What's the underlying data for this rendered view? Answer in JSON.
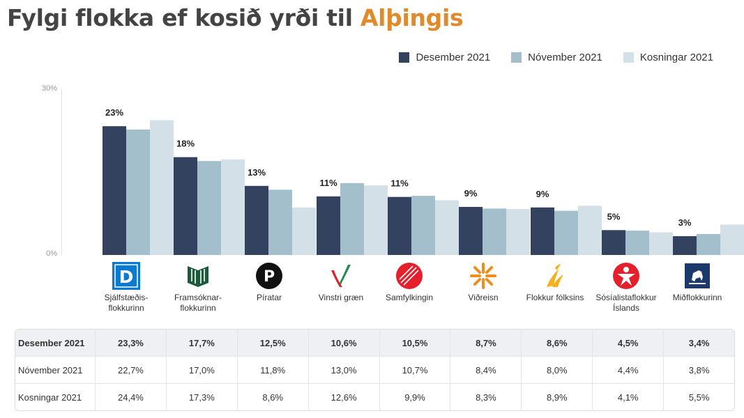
{
  "title": {
    "main": "Fylgi flokka ef kosið yrði til ",
    "accent": "Alþingis"
  },
  "colors": {
    "accent": "#e08a2c",
    "desember": "#32425f",
    "november": "#a3bfcb",
    "kosningar": "#d4e0e8"
  },
  "legend": [
    "Desember 2021",
    "Nóvember 2021",
    "Kosningar 2021"
  ],
  "y_axis": {
    "top_label": "30%",
    "bottom_label": "0%"
  },
  "chart_data": {
    "type": "bar",
    "ylim": [
      0,
      30
    ],
    "categories": [
      "Sjálfstæðis-\nflokkurinn",
      "Framsóknar-\nflokkurinn",
      "Píratar",
      "Vinstri græn",
      "Samfylkingin",
      "Viðreisn",
      "Flokkur fólksins",
      "Sósíalistaflokkur\nÍslands",
      "Miðflokkurinn"
    ],
    "series": [
      {
        "name": "Desember 2021",
        "values": [
          23.3,
          17.7,
          12.5,
          10.6,
          10.5,
          8.7,
          8.6,
          4.5,
          3.4
        ]
      },
      {
        "name": "Nóvember 2021",
        "values": [
          22.7,
          17.0,
          11.8,
          13.0,
          10.7,
          8.4,
          8.0,
          4.4,
          3.8
        ]
      },
      {
        "name": "Kosningar 2021",
        "values": [
          24.4,
          17.3,
          8.6,
          12.6,
          9.9,
          8.3,
          8.9,
          4.1,
          5.5
        ]
      }
    ],
    "data_labels": [
      "23%",
      "18%",
      "13%",
      "11%",
      "11%",
      "9%",
      "9%",
      "5%",
      "3%"
    ]
  },
  "logos": [
    "d-logo-icon",
    "book-logo-icon",
    "pirate-flag-icon",
    "v-check-icon",
    "striped-circle-icon",
    "sun-burst-icon",
    "flame-logo-icon",
    "star-person-icon",
    "horse-logo-icon"
  ],
  "logo_letters": {
    "d": "D",
    "pirate": "P"
  },
  "table": {
    "rows": [
      {
        "label": "Desember 2021",
        "values": [
          "23,3%",
          "17,7%",
          "12,5%",
          "10,6%",
          "10,5%",
          "8,7%",
          "8,6%",
          "4,5%",
          "3,4%"
        ]
      },
      {
        "label": "Nóvember 2021",
        "values": [
          "22,7%",
          "17,0%",
          "11,8%",
          "13,0%",
          "10,7%",
          "8,4%",
          "8,0%",
          "4,4%",
          "3,8%"
        ]
      },
      {
        "label": "Kosningar 2021",
        "values": [
          "24,4%",
          "17,3%",
          "8,6%",
          "12,6%",
          "9,9%",
          "8,3%",
          "8,9%",
          "4,1%",
          "5,5%"
        ]
      }
    ]
  }
}
